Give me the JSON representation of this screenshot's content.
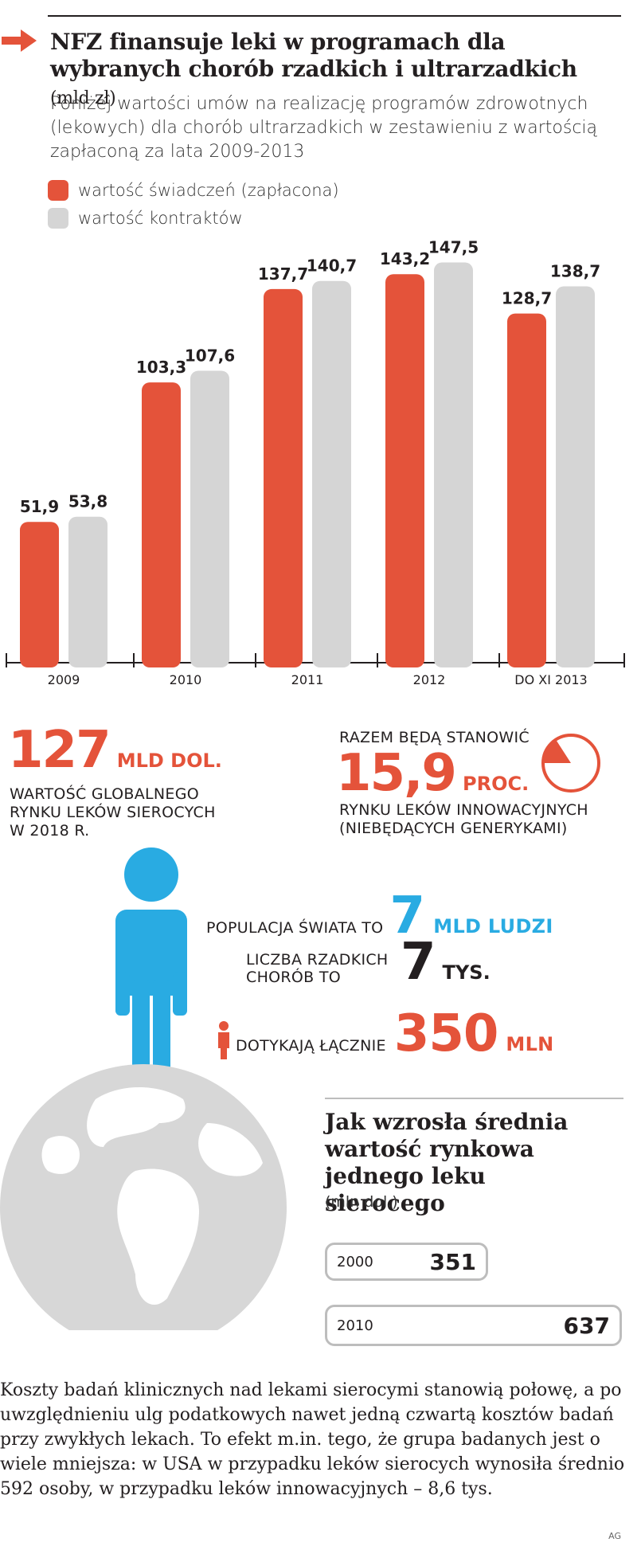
{
  "header": {
    "title": "NFZ finansuje leki w programach dla wybranych chorób rzadkich i ultrarzadkich",
    "title_unit": "(mld zł)",
    "subtitle": "Poniżej wartości umów na realizację programów zdrowotnych (lekowych) dla chorób ultrarzadkich w zestawieniu z wartością zapłaconą za lata 2009-2013"
  },
  "legend": {
    "paid": "wartość świadczeń (zapłacona)",
    "contract": "wartość kontraktów"
  },
  "colors": {
    "accent_red": "#e4533a",
    "bar_gray": "#d5d5d5",
    "accent_blue": "#29abe2",
    "globe_gray": "#d7d7d7"
  },
  "chart_data": {
    "type": "bar",
    "categories": [
      "2009",
      "2010",
      "2011",
      "2012",
      "DO XI 2013"
    ],
    "series": [
      {
        "name": "wartość świadczeń (zapłacona)",
        "values": [
          51.9,
          103.3,
          137.7,
          143.2,
          128.7
        ],
        "labels": [
          "51,9",
          "103,3",
          "137,7",
          "143,2",
          "128,7"
        ]
      },
      {
        "name": "wartość kontraktów",
        "values": [
          53.8,
          107.6,
          140.7,
          147.5,
          138.7
        ],
        "labels": [
          "53,8",
          "107,6",
          "140,7",
          "147,5",
          "138,7"
        ]
      }
    ],
    "ylim": [
      0,
      155
    ],
    "grid": false,
    "legend_position": "top-left"
  },
  "stats": {
    "global_market": {
      "value": "127",
      "unit": "MLD DOL.",
      "desc_lines": [
        "WARTOŚĆ GLOBALNEGO",
        "RYNKU LEKÓW SIEROCYCH",
        "W 2018 R."
      ]
    },
    "share": {
      "lead": "RAZEM BĘDĄ STANOWIĆ",
      "value": "15,9",
      "unit": "PROC.",
      "desc_lines": [
        "RYNKU LEKÓW INNOWACYJNYCH",
        "(NIEBĘDĄCYCH GENERYKAMI)"
      ],
      "fraction": 0.159
    },
    "population": {
      "label": "POPULACJA ŚWIATA TO",
      "value": "7",
      "unit": "MLD LUDZI"
    },
    "rare_diseases": {
      "label_lines": [
        "LICZBA RZADKICH",
        "CHORÓB TO"
      ],
      "value": "7",
      "unit": "TYS."
    },
    "affected": {
      "label": "DOTYKAJĄ ŁĄCZNIE",
      "value": "350",
      "unit": "MLN"
    }
  },
  "avg_value": {
    "title": "Jak wzrosła średnia wartość rynkowa jednego leku sierocego",
    "unit": "(mln dol.)",
    "rows": [
      {
        "year": "2000",
        "value": "351"
      },
      {
        "year": "2010",
        "value": "637"
      }
    ]
  },
  "footer": {
    "text": "Koszty badań klinicznych nad lekami sierocymi stanowią połowę, a po uwzględnieniu ulg podatkowych nawet jedną czwartą kosztów badań przy zwykłych lekach. To efekt m.in. tego, że grupa badanych jest o wiele mniejsza: w USA w przypadku leków sierocych wynosiła średnio 592 osoby, w przypadku leków innowacyjnych – 8,6 tys.",
    "credit": "AG"
  }
}
